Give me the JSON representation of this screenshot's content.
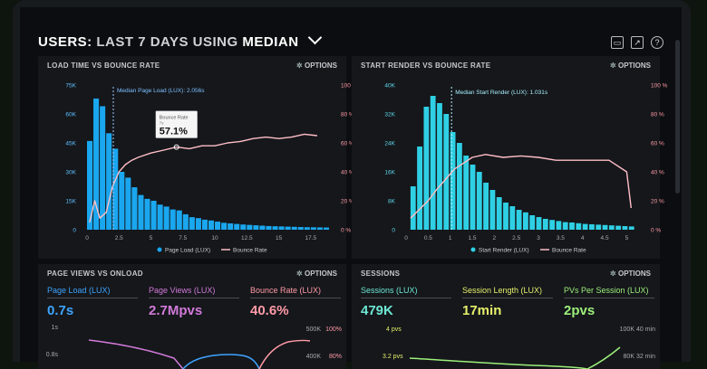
{
  "header": {
    "prefix": "USERS:",
    "title_1": "LAST 7 DAYS",
    "title_2": "USING",
    "title_3": "MEDIAN"
  },
  "panels": {
    "load_time": {
      "title": "LOAD TIME VS BOUNCE RATE",
      "options": "OPTIONS",
      "median_label": "Median Page Load (LUX): 2.056s",
      "tooltip_label": "Bounce Rate",
      "tooltip_sub": "7s",
      "tooltip_value": "57.1%",
      "legend": [
        "Page Load (LUX)",
        "Bounce Rate"
      ]
    },
    "start_render": {
      "title": "START RENDER VS BOUNCE RATE",
      "options": "OPTIONS",
      "median_label": "Median Start Render (LUX): 1.031s",
      "legend": [
        "Start Render (LUX)",
        "Bounce Rate"
      ]
    },
    "page_views": {
      "title": "PAGE VIEWS VS ONLOAD",
      "options": "OPTIONS",
      "metrics": [
        {
          "label": "Page Load (LUX)",
          "value": "0.7s"
        },
        {
          "label": "Page Views (LUX)",
          "value": "2.7Mpvs"
        },
        {
          "label": "Bounce Rate (LUX)",
          "value": "40.6%"
        }
      ],
      "left_ticks": [
        "1s",
        "0.8s"
      ],
      "right_ticks_1": [
        "500K",
        "400K"
      ],
      "right_ticks_2": [
        "100%",
        "80%"
      ]
    },
    "sessions": {
      "title": "SESSIONS",
      "options": "OPTIONS",
      "metrics": [
        {
          "label": "Sessions (LUX)",
          "value": "479K"
        },
        {
          "label": "Session Length (LUX)",
          "value": "17min"
        },
        {
          "label": "PVs Per Session (LUX)",
          "value": "2pvs"
        }
      ],
      "left_ticks": [
        "4 pvs",
        "3.2 pvs"
      ],
      "right_ticks_1": [
        "100K",
        "80K"
      ],
      "right_ticks_2": [
        "40 min",
        "32 min"
      ]
    }
  },
  "chart_data": [
    {
      "type": "bar",
      "title": "LOAD TIME VS BOUNCE RATE",
      "x_ticks": [
        "0",
        "2.5",
        "5",
        "7.5",
        "10",
        "12.5",
        "15",
        "17.5"
      ],
      "y_left_ticks": [
        "75K",
        "60K",
        "45K",
        "30K",
        "15K",
        "0"
      ],
      "y_right_ticks": [
        "100 %",
        "80 %",
        "60 %",
        "40 %",
        "20 %",
        "0 %"
      ],
      "xlim": [
        0,
        19
      ],
      "ylim": [
        0,
        75000
      ],
      "bar_width": 0.5,
      "series": [
        {
          "name": "Page Load (LUX)",
          "kind": "bar",
          "x": [
            0,
            0.5,
            1,
            1.5,
            2,
            2.5,
            3,
            3.5,
            4,
            4.5,
            5,
            5.5,
            6,
            6.5,
            7,
            7.5,
            8,
            8.5,
            9,
            9.5,
            10,
            10.5,
            11,
            11.5,
            12,
            12.5,
            13,
            13.5,
            14,
            14.5,
            15,
            15.5,
            16,
            16.5,
            17,
            17.5,
            18,
            18.5
          ],
          "values": [
            46000,
            68000,
            64000,
            50000,
            42000,
            30000,
            27000,
            22000,
            18000,
            16000,
            15000,
            13000,
            12000,
            10500,
            10000,
            8000,
            6500,
            6000,
            5200,
            4800,
            4200,
            3600,
            3300,
            3000,
            2700,
            2500,
            2300,
            2100,
            1900,
            1800,
            1700,
            1600,
            1500,
            1400,
            1300,
            1250,
            1200,
            1150
          ]
        },
        {
          "name": "Bounce Rate",
          "kind": "line",
          "axis": "right",
          "x": [
            0.2,
            0.6,
            1.0,
            1.5,
            2.0,
            2.5,
            3.0,
            3.5,
            4,
            5,
            6,
            7,
            8,
            9,
            10,
            11,
            12,
            13,
            14,
            15,
            16,
            17,
            18
          ],
          "values": [
            5,
            20,
            8,
            12,
            30,
            40,
            45,
            48,
            50,
            53,
            55,
            57.1,
            56,
            58,
            58,
            60,
            61,
            63,
            64,
            63,
            64,
            66,
            65
          ]
        }
      ]
    },
    {
      "type": "bar",
      "title": "START RENDER VS BOUNCE RATE",
      "x_ticks": [
        "0",
        "0.5",
        "1",
        "1.5",
        "2",
        "2.5",
        "3",
        "3.5",
        "4",
        "4.5",
        "5"
      ],
      "y_left_ticks": [
        "40K",
        "32K",
        "24K",
        "16K",
        "8K",
        "0"
      ],
      "y_right_ticks": [
        "100 %",
        "80 %",
        "60 %",
        "40 %",
        "20 %",
        "0 %"
      ],
      "xlim": [
        0,
        5.3
      ],
      "ylim": [
        0,
        40000
      ],
      "bar_width": 0.14,
      "series": [
        {
          "name": "Start Render (LUX)",
          "kind": "bar",
          "x": [
            0.1,
            0.25,
            0.4,
            0.55,
            0.7,
            0.85,
            1.0,
            1.15,
            1.3,
            1.45,
            1.6,
            1.75,
            1.9,
            2.05,
            2.2,
            2.35,
            2.5,
            2.65,
            2.8,
            2.95,
            3.1,
            3.25,
            3.4,
            3.55,
            3.7,
            3.85,
            4.0,
            4.15,
            4.3,
            4.45,
            4.6,
            4.75,
            4.9,
            5.05
          ],
          "values": [
            12000,
            23000,
            34000,
            37000,
            35000,
            32000,
            27000,
            24000,
            20500,
            18000,
            16000,
            13000,
            11000,
            9000,
            7500,
            6500,
            5500,
            4800,
            4000,
            3500,
            3000,
            2700,
            2400,
            2100,
            2000,
            1800,
            1600,
            1500,
            1400,
            1300,
            1200,
            1100,
            1000,
            900
          ]
        },
        {
          "name": "Bounce Rate",
          "kind": "line",
          "axis": "right",
          "x": [
            0.1,
            0.3,
            0.5,
            0.7,
            0.9,
            1.1,
            1.3,
            1.5,
            1.8,
            2.2,
            2.6,
            3.0,
            3.4,
            3.8,
            4.2,
            4.6,
            5.0,
            5.1
          ],
          "values": [
            8,
            14,
            20,
            28,
            35,
            42,
            46,
            50,
            52,
            50,
            51,
            50,
            48,
            48,
            48,
            48,
            40,
            15
          ]
        }
      ]
    }
  ]
}
